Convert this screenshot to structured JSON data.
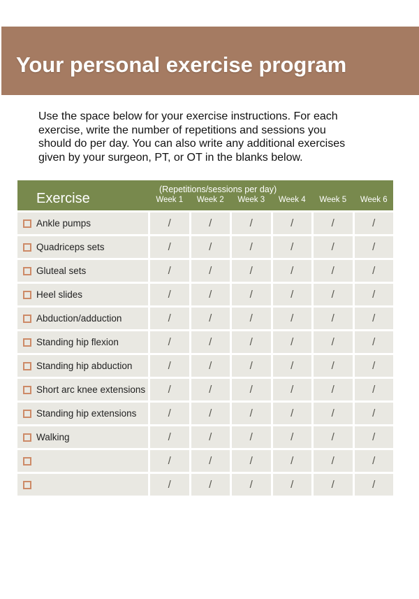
{
  "banner": {
    "title": "Your personal exercise program",
    "bg_color": "#a57b62",
    "text_color": "#ffffff"
  },
  "intro": {
    "lines": [
      "Use the space below for your exercise instructions. For each",
      "exercise, write the number of repetitions and sessions you",
      "should do per day. You can also write any additional exercises",
      "given by your surgeon, PT, or OT in the blanks below."
    ]
  },
  "table": {
    "header": {
      "exercise_label": "Exercise",
      "caption": "(Repetitions/sessions per day)",
      "week_labels": [
        "Week 1",
        "Week 2",
        "Week 3",
        "Week 4",
        "Week 5",
        "Week 6"
      ],
      "bg_color": "#78894d"
    },
    "cell_mark": "/",
    "row_bg_color": "#e9e8e2",
    "checkbox_color": "#cd8a67",
    "mark_color": "#55544c",
    "rows": [
      {
        "name": "Ankle pumps",
        "checked": false
      },
      {
        "name": "Quadriceps sets",
        "checked": false
      },
      {
        "name": "Gluteal sets",
        "checked": false
      },
      {
        "name": "Heel slides",
        "checked": false
      },
      {
        "name": "Abduction/adduction",
        "checked": false
      },
      {
        "name": "Standing hip flexion",
        "checked": false
      },
      {
        "name": "Standing hip abduction",
        "checked": false
      },
      {
        "name": "Short arc knee extensions",
        "checked": false
      },
      {
        "name": "Standing hip extensions",
        "checked": false
      },
      {
        "name": "Walking",
        "checked": false
      },
      {
        "name": "",
        "checked": false
      },
      {
        "name": "",
        "checked": false
      }
    ]
  }
}
